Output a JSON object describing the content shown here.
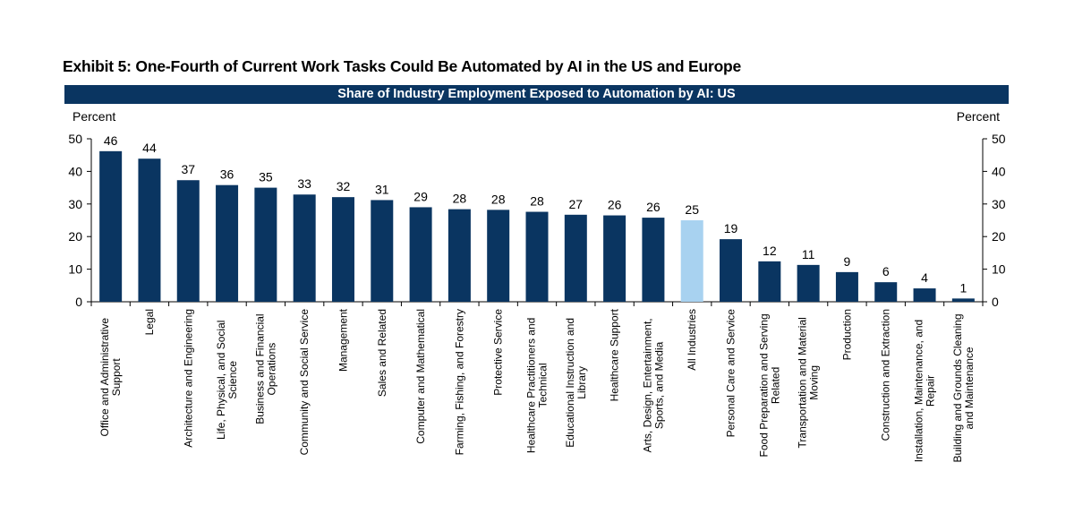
{
  "exhibit_title": "Exhibit 5: One-Fourth of Current Work Tasks Could Be Automated by AI in the US and Europe",
  "colors": {
    "bar": "#0a3561",
    "highlight": "#a8d2f0",
    "banner": "#0a3561"
  },
  "chart_data": {
    "type": "bar",
    "title": "Share of Industry Employment Exposed to Automation by AI: US",
    "ylabel_left": "Percent",
    "ylabel_right": "Percent",
    "ylim": [
      0,
      50
    ],
    "yticks": [
      0,
      10,
      20,
      30,
      40,
      50
    ],
    "grid": false,
    "highlight_category": "All Industries",
    "categories": [
      "Office and Administrative Support",
      "Legal",
      "Architecture and Engineering",
      "Life, Physical, and Social Science",
      "Business and Financial Operations",
      "Community and Social Service",
      "Management",
      "Sales and Related",
      "Computer and Mathematical",
      "Farming, Fishing, and Forestry",
      "Protective Service",
      "Healthcare Practitioners and Technical",
      "Educational Instruction and Library",
      "Healthcare Support",
      "Arts, Design, Entertainment, Sports, and Media",
      "All Industries",
      "Personal Care and Service",
      "Food Preparation and Serving Related",
      "Transportation and Material Moving",
      "Production",
      "Construction and Extraction",
      "Installation, Maintenance, and Repair",
      "Building and Grounds Cleaning and Maintenance"
    ],
    "category_label_lines": [
      [
        "Office and Administrative",
        "Support"
      ],
      [
        "Legal"
      ],
      [
        "Architecture and Engineering"
      ],
      [
        "Life, Physical, and Social",
        "Science"
      ],
      [
        "Business and Financial",
        "Operations"
      ],
      [
        "Community and Social Service"
      ],
      [
        "Management"
      ],
      [
        "Sales and Related"
      ],
      [
        "Computer and Mathematical"
      ],
      [
        "Farming, Fishing, and Forestry"
      ],
      [
        "Protective Service"
      ],
      [
        "Healthcare Practitioners and",
        "Technical"
      ],
      [
        "Educational Instruction and",
        "Library"
      ],
      [
        "Healthcare Support"
      ],
      [
        "Arts, Design, Entertainment,",
        "Sports, and Media"
      ],
      [
        "All Industries"
      ],
      [
        "Personal Care and Service"
      ],
      [
        "Food Preparation and Serving",
        "Related"
      ],
      [
        "Transportation and Material",
        "Moving"
      ],
      [
        "Production"
      ],
      [
        "Construction and Extraction"
      ],
      [
        "Installation, Maintenance, and",
        "Repair"
      ],
      [
        "Building and Grounds Cleaning",
        "and Maintenance"
      ]
    ],
    "values": [
      46,
      44,
      37,
      36,
      35,
      33,
      32,
      31,
      29,
      28,
      28,
      28,
      27,
      26,
      26,
      25,
      19,
      12,
      11,
      9,
      6,
      4,
      1
    ],
    "precise_values": [
      46.2,
      43.9,
      37.3,
      35.8,
      35.0,
      32.9,
      32.1,
      31.2,
      29.0,
      28.4,
      28.2,
      27.6,
      26.7,
      26.5,
      25.8,
      25.0,
      19.2,
      12.4,
      11.3,
      9.1,
      6.0,
      4.1,
      1.0
    ],
    "data_labels": [
      "46",
      "44",
      "37",
      "36",
      "35",
      "33",
      "32",
      "31",
      "29",
      "28",
      "28",
      "28",
      "27",
      "26",
      "26",
      "25",
      "19",
      "12",
      "11",
      "9",
      "6",
      "4",
      "1"
    ]
  }
}
